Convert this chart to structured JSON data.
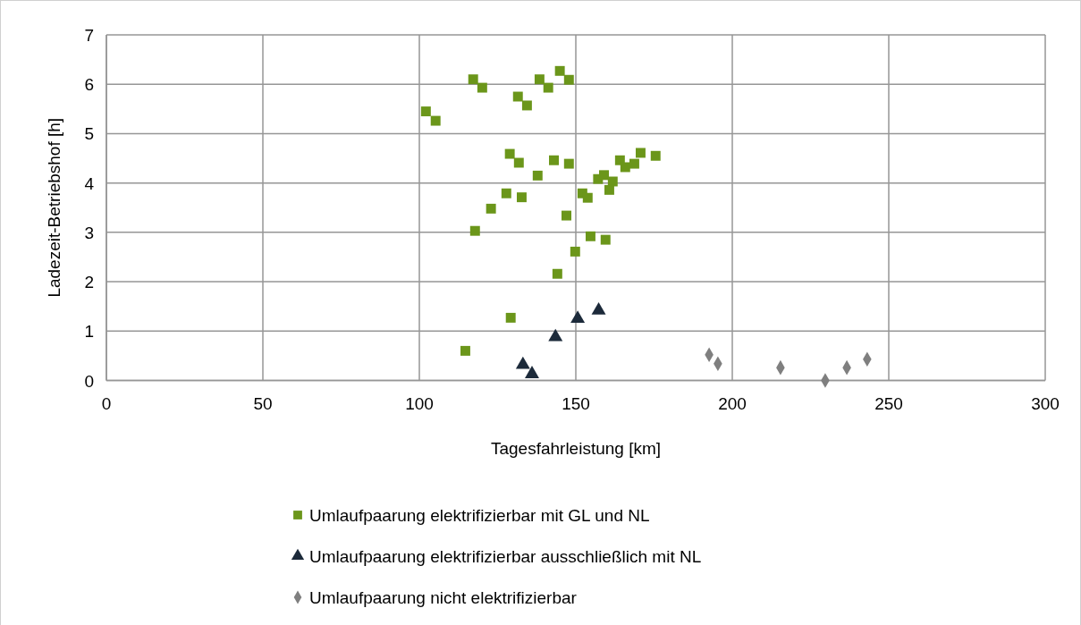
{
  "chart_data": {
    "type": "scatter",
    "xlabel": "Tagesfahrleistung [km]",
    "ylabel": "Ladezeit-Betriebshof [h]",
    "xlim": [
      0,
      300
    ],
    "xticks": [
      0,
      50,
      100,
      150,
      200,
      250,
      300
    ],
    "ylim": [
      0,
      7
    ],
    "yticks": [
      0,
      1,
      2,
      3,
      4,
      5,
      6,
      7
    ],
    "grid": true,
    "legend": "bottom",
    "series": [
      {
        "name": "Umlaufpaarung elektrifizierbar mit GL und NL",
        "color": "#6b961a",
        "marker": "square",
        "x": [
          102.1,
          105.2,
          117.2,
          120.1,
          131.5,
          134.4,
          138.4,
          141.2,
          144.9,
          147.8,
          128.9,
          131.8,
          137.8,
          143.0,
          147.8,
          127.8,
          132.7,
          122.9,
          117.8,
          157.1,
          159.0,
          161.8,
          160.7,
          164.1,
          165.8,
          168.7,
          170.7,
          175.5,
          152.1,
          153.8,
          147.0,
          154.7,
          159.5,
          149.8,
          144.1,
          129.2,
          114.7
        ],
        "values": [
          5.45,
          5.26,
          6.1,
          5.93,
          5.75,
          5.57,
          6.1,
          5.93,
          6.27,
          6.09,
          4.59,
          4.41,
          4.15,
          4.46,
          4.39,
          3.79,
          3.71,
          3.48,
          3.03,
          4.08,
          4.16,
          4.03,
          3.86,
          4.46,
          4.32,
          4.39,
          4.61,
          4.55,
          3.79,
          3.7,
          3.34,
          2.92,
          2.85,
          2.61,
          2.16,
          1.27,
          0.6
        ]
      },
      {
        "name": "Umlaufpaarung elektrifizierbar ausschließlich mit NL",
        "color": "#1c2a3a",
        "marker": "triangle",
        "x": [
          133.1,
          136.0,
          143.5,
          150.6,
          157.3
        ],
        "values": [
          0.32,
          0.13,
          0.88,
          1.25,
          1.42
        ]
      },
      {
        "name": "Umlaufpaarung nicht elektrifizierbar",
        "color": "#7f7f7f",
        "marker": "diamond",
        "x": [
          192.6,
          195.4,
          215.4,
          229.7,
          236.6,
          243.1
        ],
        "values": [
          0.52,
          0.34,
          0.26,
          0,
          0.26,
          0.43
        ]
      }
    ]
  }
}
